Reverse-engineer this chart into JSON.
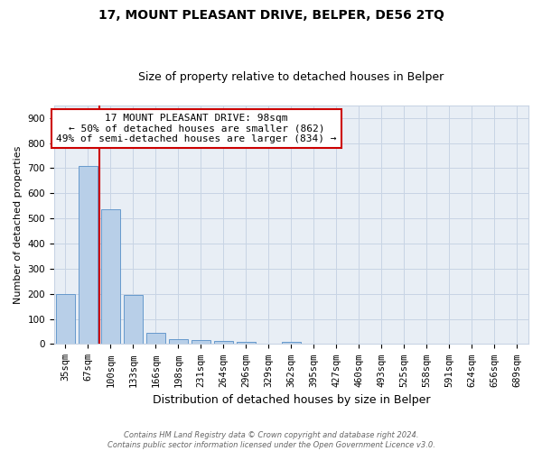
{
  "title": "17, MOUNT PLEASANT DRIVE, BELPER, DE56 2TQ",
  "subtitle": "Size of property relative to detached houses in Belper",
  "xlabel": "Distribution of detached houses by size in Belper",
  "ylabel": "Number of detached properties",
  "categories": [
    "35sqm",
    "67sqm",
    "100sqm",
    "133sqm",
    "166sqm",
    "198sqm",
    "231sqm",
    "264sqm",
    "296sqm",
    "329sqm",
    "362sqm",
    "395sqm",
    "427sqm",
    "460sqm",
    "493sqm",
    "525sqm",
    "558sqm",
    "591sqm",
    "624sqm",
    "656sqm",
    "689sqm"
  ],
  "values": [
    200,
    710,
    535,
    195,
    45,
    20,
    15,
    12,
    8,
    0,
    8,
    0,
    0,
    0,
    0,
    0,
    0,
    0,
    0,
    0,
    0
  ],
  "bar_color": "#b8cfe8",
  "bar_edgecolor": "#6699cc",
  "vline_x": 1.5,
  "vline_color": "#cc0000",
  "annotation_text": "17 MOUNT PLEASANT DRIVE: 98sqm\n← 50% of detached houses are smaller (862)\n49% of semi-detached houses are larger (834) →",
  "annotation_box_facecolor": "#ffffff",
  "annotation_box_edgecolor": "#cc0000",
  "ylim": [
    0,
    950
  ],
  "yticks": [
    0,
    100,
    200,
    300,
    400,
    500,
    600,
    700,
    800,
    900
  ],
  "footer": "Contains HM Land Registry data © Crown copyright and database right 2024.\nContains public sector information licensed under the Open Government Licence v3.0.",
  "plot_bg_color": "#e8eef5",
  "fig_bg_color": "#ffffff",
  "grid_color": "#c8d4e4",
  "title_fontsize": 10,
  "subtitle_fontsize": 9,
  "ylabel_fontsize": 8,
  "xlabel_fontsize": 9,
  "tick_fontsize": 7.5,
  "annotation_fontsize": 8,
  "footer_fontsize": 6
}
